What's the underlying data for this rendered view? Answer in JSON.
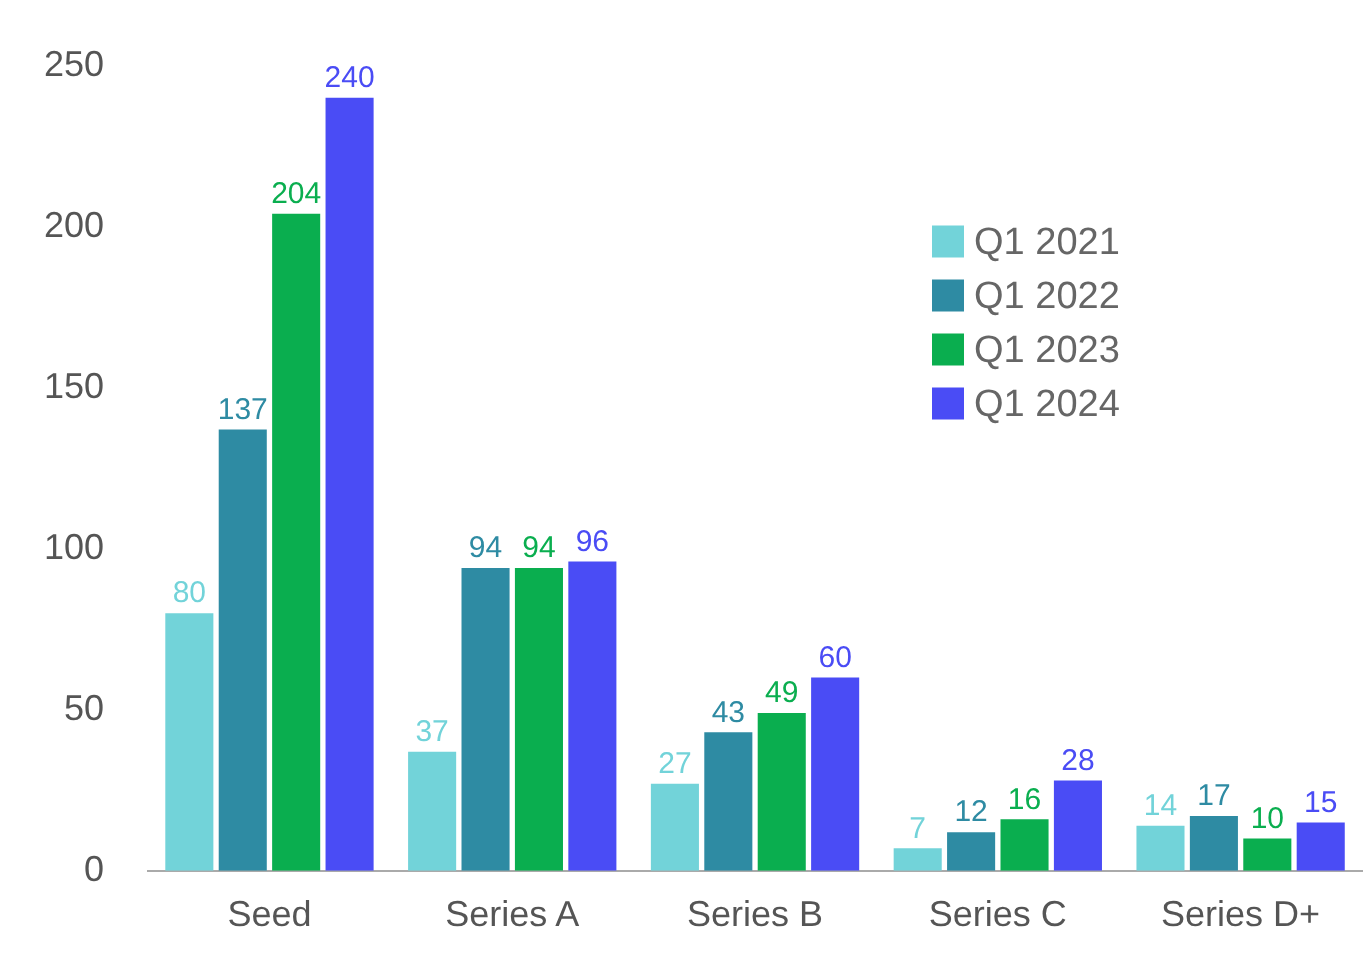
{
  "chart_data": {
    "type": "bar",
    "categories": [
      "Seed",
      "Series A",
      "Series B",
      "Series C",
      "Series D+"
    ],
    "series": [
      {
        "name": "Q1 2021",
        "color": "#72d3d9",
        "values": [
          80,
          37,
          27,
          7,
          14
        ]
      },
      {
        "name": "Q1 2022",
        "color": "#2e8ba3",
        "values": [
          137,
          94,
          43,
          12,
          17
        ]
      },
      {
        "name": "Q1 2023",
        "color": "#0aae4f",
        "values": [
          204,
          94,
          49,
          16,
          10
        ]
      },
      {
        "name": "Q1 2024",
        "color": "#4a4cf5",
        "values": [
          240,
          96,
          60,
          28,
          15
        ]
      }
    ],
    "ylim": [
      0,
      250
    ],
    "yticks": [
      0,
      50,
      100,
      150,
      200,
      250
    ],
    "grid": false,
    "legend": "top right",
    "data_labels": true
  }
}
